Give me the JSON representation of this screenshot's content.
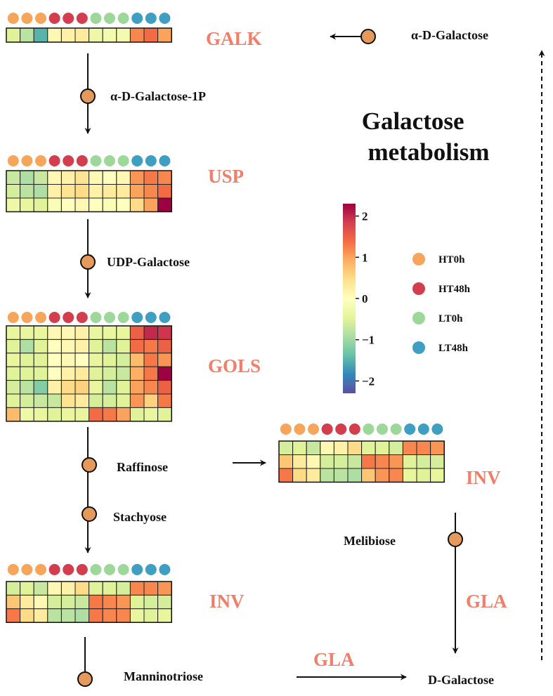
{
  "title": "Galactose\nmetabolism",
  "title_lines": [
    "Galactose",
    "metabolism"
  ],
  "samples": [
    "HT0h",
    "HT0h",
    "HT0h",
    "HT48h",
    "HT48h",
    "HT48h",
    "LT0h",
    "LT0h",
    "LT0h",
    "LT48h",
    "LT48h",
    "LT48h"
  ],
  "group_colors": {
    "HT0h": "#F6A55A",
    "HT48h": "#D23E4E",
    "LT0h": "#9DD89A",
    "LT48h": "#3E9FC2"
  },
  "legend": {
    "groups": [
      {
        "name": "HT0h",
        "color": "#F6A55A"
      },
      {
        "name": "HT48h",
        "color": "#D23E4E"
      },
      {
        "name": "LT0h",
        "color": "#9DD89A"
      },
      {
        "name": "LT48h",
        "color": "#3E9FC2"
      }
    ],
    "colorbar": {
      "min": -2.3,
      "max": 2.3,
      "ticks": [
        "2",
        "1",
        "0",
        "−1",
        "−2"
      ],
      "tick_values": [
        2,
        1,
        0,
        -1,
        -2
      ]
    }
  },
  "enzymes": {
    "galk": "GALK",
    "usp": "USP",
    "gols": "GOLS",
    "inv_left": "INV",
    "inv_right": "INV",
    "gla_right": "GLA",
    "gla_bottom": "GLA"
  },
  "metabolites": {
    "alpha_d_galactose": "α-D-Galactose",
    "alpha_d_galactose_1p": "α-D-Galactose-1P",
    "udp_galactose": "UDP-Galactose",
    "raffinose": "Raffinose",
    "stachyose": "Stachyose",
    "manninotriose": "Manninotriose",
    "melibiose": "Melibiose",
    "d_galactose": "D-Galactose"
  },
  "heatmaps": {
    "galk": [
      [
        -0.5,
        -0.8,
        -1.5,
        0.1,
        0.2,
        0.3,
        -0.3,
        -0.2,
        -0.2,
        1.2,
        1.4,
        1.0
      ]
    ],
    "usp": [
      [
        -0.7,
        -0.9,
        -0.7,
        0.1,
        0.2,
        0.4,
        0.1,
        0.0,
        0.1,
        1.1,
        1.3,
        1.2
      ],
      [
        -0.6,
        -0.8,
        -0.9,
        0.2,
        0.4,
        0.5,
        0.2,
        0.3,
        0.3,
        1.0,
        1.2,
        1.4
      ],
      [
        -0.3,
        -0.4,
        -0.5,
        -0.1,
        0.0,
        0.1,
        0.0,
        -0.1,
        0.0,
        0.5,
        1.0,
        2.3
      ]
    ],
    "gols": [
      [
        -0.4,
        -0.4,
        -0.4,
        0.1,
        0.1,
        0.2,
        -0.4,
        -0.4,
        -0.4,
        1.5,
        2.0,
        1.9
      ],
      [
        -0.5,
        -0.9,
        -0.5,
        0.0,
        0.1,
        0.2,
        -0.5,
        -0.8,
        -0.5,
        1.4,
        1.3,
        1.5
      ],
      [
        -0.4,
        -0.5,
        -0.5,
        0.0,
        0.1,
        0.0,
        -0.4,
        -0.5,
        -0.6,
        0.8,
        1.3,
        1.1
      ],
      [
        -0.5,
        -0.5,
        -0.5,
        0.0,
        0.2,
        0.3,
        -0.5,
        -0.6,
        -0.7,
        0.9,
        1.3,
        2.3
      ],
      [
        -0.6,
        -0.8,
        -1.2,
        0.2,
        0.5,
        0.6,
        -0.4,
        -0.8,
        -0.5,
        1.0,
        1.2,
        1.5
      ],
      [
        -0.5,
        -0.6,
        -0.7,
        -0.7,
        0.4,
        0.3,
        -0.6,
        -0.6,
        -0.5,
        1.1,
        0.6,
        1.3
      ],
      [
        0.8,
        -0.3,
        -0.4,
        -0.5,
        -0.4,
        -0.4,
        1.4,
        1.3,
        1.0,
        -0.5,
        -0.4,
        -0.5
      ]
    ],
    "inv_left": [
      [
        -0.6,
        -0.5,
        -0.7,
        0.1,
        0.2,
        0.5,
        -0.5,
        -0.5,
        -0.6,
        1.2,
        1.2,
        1.1
      ],
      [
        0.7,
        0.3,
        0.1,
        -0.6,
        -0.6,
        -0.7,
        1.3,
        1.2,
        1.1,
        -0.5,
        -0.6,
        -0.6
      ],
      [
        1.3,
        0.5,
        0.3,
        -0.8,
        -0.8,
        -0.9,
        1.3,
        1.2,
        1.2,
        -0.4,
        -0.5,
        -0.4
      ]
    ],
    "inv_right": [
      [
        -0.6,
        -0.5,
        -0.7,
        0.1,
        0.2,
        0.5,
        -0.5,
        -0.5,
        -0.6,
        1.2,
        1.2,
        1.1
      ],
      [
        0.7,
        0.3,
        0.1,
        -0.6,
        -0.6,
        -0.7,
        1.3,
        1.2,
        1.1,
        -0.5,
        -0.6,
        -0.6
      ],
      [
        1.3,
        0.5,
        0.3,
        -0.8,
        -0.8,
        -0.9,
        0.7,
        1.1,
        1.2,
        -0.4,
        -0.5,
        -0.4
      ]
    ]
  }
}
